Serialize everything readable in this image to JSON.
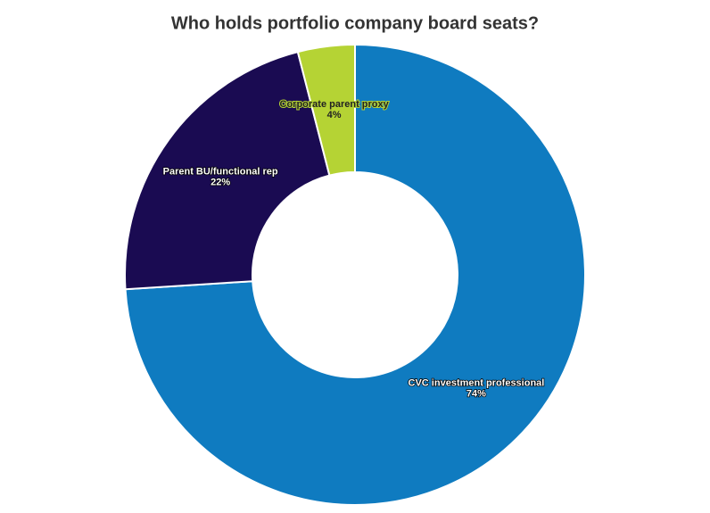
{
  "chart_data": {
    "type": "donut",
    "title": "Who holds portfolio company board seats?",
    "categories": [
      "CVC investment professional",
      "Parent BU/functional rep",
      "Corporate parent proxy"
    ],
    "values": [
      74,
      22,
      4
    ],
    "value_labels": [
      "74%",
      "22%",
      "4%"
    ],
    "colors": [
      "#0f7bc0",
      "#1a0b52",
      "#b5d334"
    ]
  }
}
